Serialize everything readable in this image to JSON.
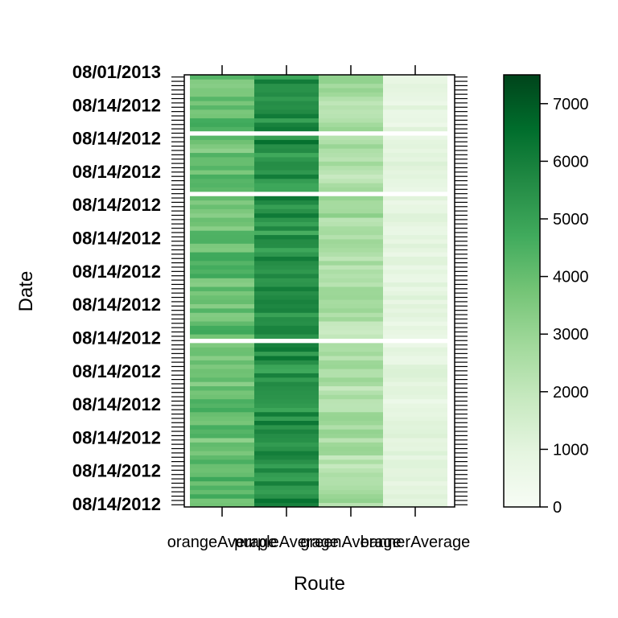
{
  "chart_data": {
    "type": "heatmap",
    "title": "",
    "xlabel": "Route",
    "ylabel": "Date",
    "categories": [
      "orangeAverage",
      "purpleAverage",
      "greenAverage",
      "bannerAverage"
    ],
    "y_tick_first": "08/14/2012",
    "y_tick_last": "08/01/2013",
    "row_count": 100,
    "gap_rows_after": [
      38,
      72,
      86
    ],
    "column_profiles": [
      {
        "name": "orangeAverage",
        "mean": 4000,
        "amp": 700,
        "seed": 3
      },
      {
        "name": "purpleAverage",
        "mean": 5500,
        "amp": 800,
        "seed": 11
      },
      {
        "name": "greenAverage",
        "mean": 2500,
        "amp": 600,
        "seed": 23
      },
      {
        "name": "bannerAverage",
        "mean": 900,
        "amp": 300,
        "seed": 37
      }
    ],
    "colorbar": {
      "min": 0,
      "max": 7500,
      "ticks": [
        0,
        1000,
        2000,
        3000,
        4000,
        5000,
        6000,
        7000
      ],
      "tick_labels": [
        "0",
        "1000",
        "2000",
        "3000",
        "4000",
        "5000",
        "6000",
        "7000"
      ],
      "low_color": "#f7fcf5",
      "high_color": "#00441b",
      "palette": [
        "#f7fcf5",
        "#e5f5e0",
        "#c7e9c0",
        "#a1d99b",
        "#74c476",
        "#41ab5d",
        "#238b45",
        "#006d2c",
        "#00441b"
      ]
    }
  }
}
